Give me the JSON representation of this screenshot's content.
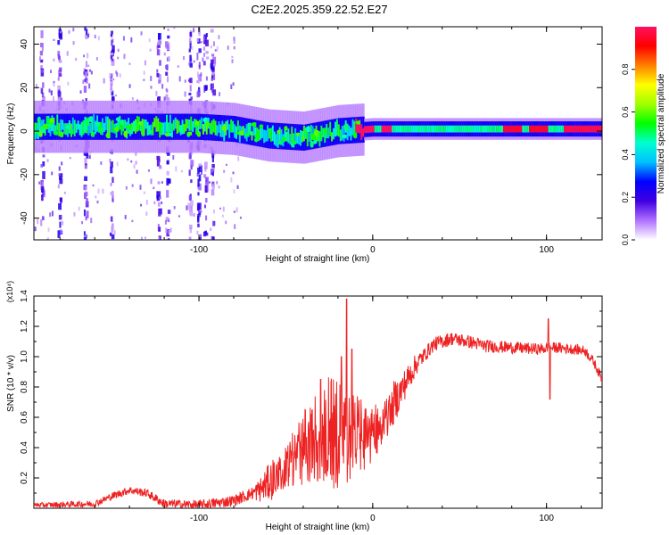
{
  "figure": {
    "title": "C2E2.2025.359.22.52.E27"
  },
  "chart_data": [
    {
      "type": "heatmap",
      "name": "spectrogram",
      "xlabel": "Height of straight line (km)",
      "ylabel": "Frequency (Hz)",
      "xlim": [
        -195,
        132
      ],
      "ylim": [
        -50,
        48
      ],
      "x_ticks": [
        -100,
        0,
        100
      ],
      "x_tick_labels": [
        "-100",
        "0",
        "100"
      ],
      "y_ticks": [
        -40,
        -20,
        0,
        20,
        40
      ],
      "y_tick_labels": [
        "-40",
        "-20",
        "0",
        "20",
        "40"
      ],
      "colorbar": {
        "label": "Normalized spectral amplitude",
        "range": [
          0,
          1
        ],
        "ticks": [
          0.0,
          0.2,
          0.4,
          0.6,
          0.8
        ],
        "tick_labels": [
          "0.0",
          "0.2",
          "0.4",
          "0.6",
          "0.8"
        ],
        "colors": [
          "#ffffff",
          "#b070ff",
          "#4000e0",
          "#0000ff",
          "#00c0ff",
          "#00ffd0",
          "#00ff00",
          "#a0ff00",
          "#ffff00",
          "#ff8000",
          "#ff0000",
          "#ff1060"
        ]
      },
      "band_center_hz": [
        {
          "x": -195,
          "f": 2
        },
        {
          "x": -150,
          "f": 2
        },
        {
          "x": -100,
          "f": 2
        },
        {
          "x": -80,
          "f": 1
        },
        {
          "x": -60,
          "f": -2
        },
        {
          "x": -40,
          "f": -3
        },
        {
          "x": -20,
          "f": 0
        },
        {
          "x": 0,
          "f": 1
        },
        {
          "x": 50,
          "f": 1
        },
        {
          "x": 132,
          "f": 1
        }
      ],
      "vertical_streaks_km": [
        -190,
        -180,
        -165,
        -150,
        -123,
        -118,
        -105,
        -100,
        -96,
        -92
      ],
      "peak_amplitude_regions_km": [
        {
          "from": -10,
          "to": 0,
          "value": 1.0
        },
        {
          "from": 5,
          "to": 10,
          "value": 1.0
        },
        {
          "from": 75,
          "to": 85,
          "value": 0.95
        },
        {
          "from": 90,
          "to": 100,
          "value": 0.95
        },
        {
          "from": 110,
          "to": 132,
          "value": 0.98
        }
      ]
    },
    {
      "type": "line",
      "name": "snr",
      "xlabel": "Height of straight line (km)",
      "ylabel": "SNR (10 * v/v)",
      "scale_label": "(x10⁴)",
      "xlim": [
        -195,
        132
      ],
      "ylim": [
        0,
        1.4
      ],
      "x_ticks": [
        -100,
        0,
        100
      ],
      "x_tick_labels": [
        "-100",
        "0",
        "100"
      ],
      "y_ticks": [
        0.2,
        0.4,
        0.6,
        0.8,
        1.0,
        1.2,
        1.4
      ],
      "y_tick_labels": [
        "0.2",
        "0.4",
        "0.6",
        "0.8",
        "1.0",
        "1.2",
        "1.4"
      ],
      "color": "#ee2222",
      "envelope": [
        {
          "x": -195,
          "y": 0.02
        },
        {
          "x": -160,
          "y": 0.03
        },
        {
          "x": -150,
          "y": 0.08
        },
        {
          "x": -140,
          "y": 0.12
        },
        {
          "x": -130,
          "y": 0.1
        },
        {
          "x": -120,
          "y": 0.03
        },
        {
          "x": -100,
          "y": 0.02
        },
        {
          "x": -80,
          "y": 0.05
        },
        {
          "x": -65,
          "y": 0.12
        },
        {
          "x": -55,
          "y": 0.22
        },
        {
          "x": -45,
          "y": 0.35
        },
        {
          "x": -35,
          "y": 0.48
        },
        {
          "x": -25,
          "y": 0.55
        },
        {
          "x": -15,
          "y": 0.5
        },
        {
          "x": -5,
          "y": 0.5
        },
        {
          "x": 5,
          "y": 0.55
        },
        {
          "x": 15,
          "y": 0.75
        },
        {
          "x": 25,
          "y": 0.95
        },
        {
          "x": 35,
          "y": 1.08
        },
        {
          "x": 45,
          "y": 1.12
        },
        {
          "x": 55,
          "y": 1.1
        },
        {
          "x": 65,
          "y": 1.07
        },
        {
          "x": 80,
          "y": 1.06
        },
        {
          "x": 95,
          "y": 1.05
        },
        {
          "x": 105,
          "y": 1.06
        },
        {
          "x": 115,
          "y": 1.05
        },
        {
          "x": 122,
          "y": 1.04
        },
        {
          "x": 127,
          "y": 0.97
        },
        {
          "x": 132,
          "y": 0.85
        }
      ],
      "noise_amplitude": [
        {
          "x": -195,
          "a": 0.02
        },
        {
          "x": -70,
          "a": 0.05
        },
        {
          "x": -50,
          "a": 0.25
        },
        {
          "x": -35,
          "a": 0.55
        },
        {
          "x": -20,
          "a": 0.7
        },
        {
          "x": -10,
          "a": 0.5
        },
        {
          "x": 0,
          "a": 0.35
        },
        {
          "x": 15,
          "a": 0.15
        },
        {
          "x": 30,
          "a": 0.06
        },
        {
          "x": 132,
          "a": 0.04
        }
      ],
      "spikes": [
        {
          "x": -15,
          "y": 1.38
        },
        {
          "x": -18,
          "y": 1.0
        },
        {
          "x": -12,
          "y": 1.05
        },
        {
          "x": -30,
          "y": 0.85
        },
        {
          "x": 101,
          "y": 1.25
        },
        {
          "x": 102,
          "y": 0.72
        }
      ]
    }
  ]
}
